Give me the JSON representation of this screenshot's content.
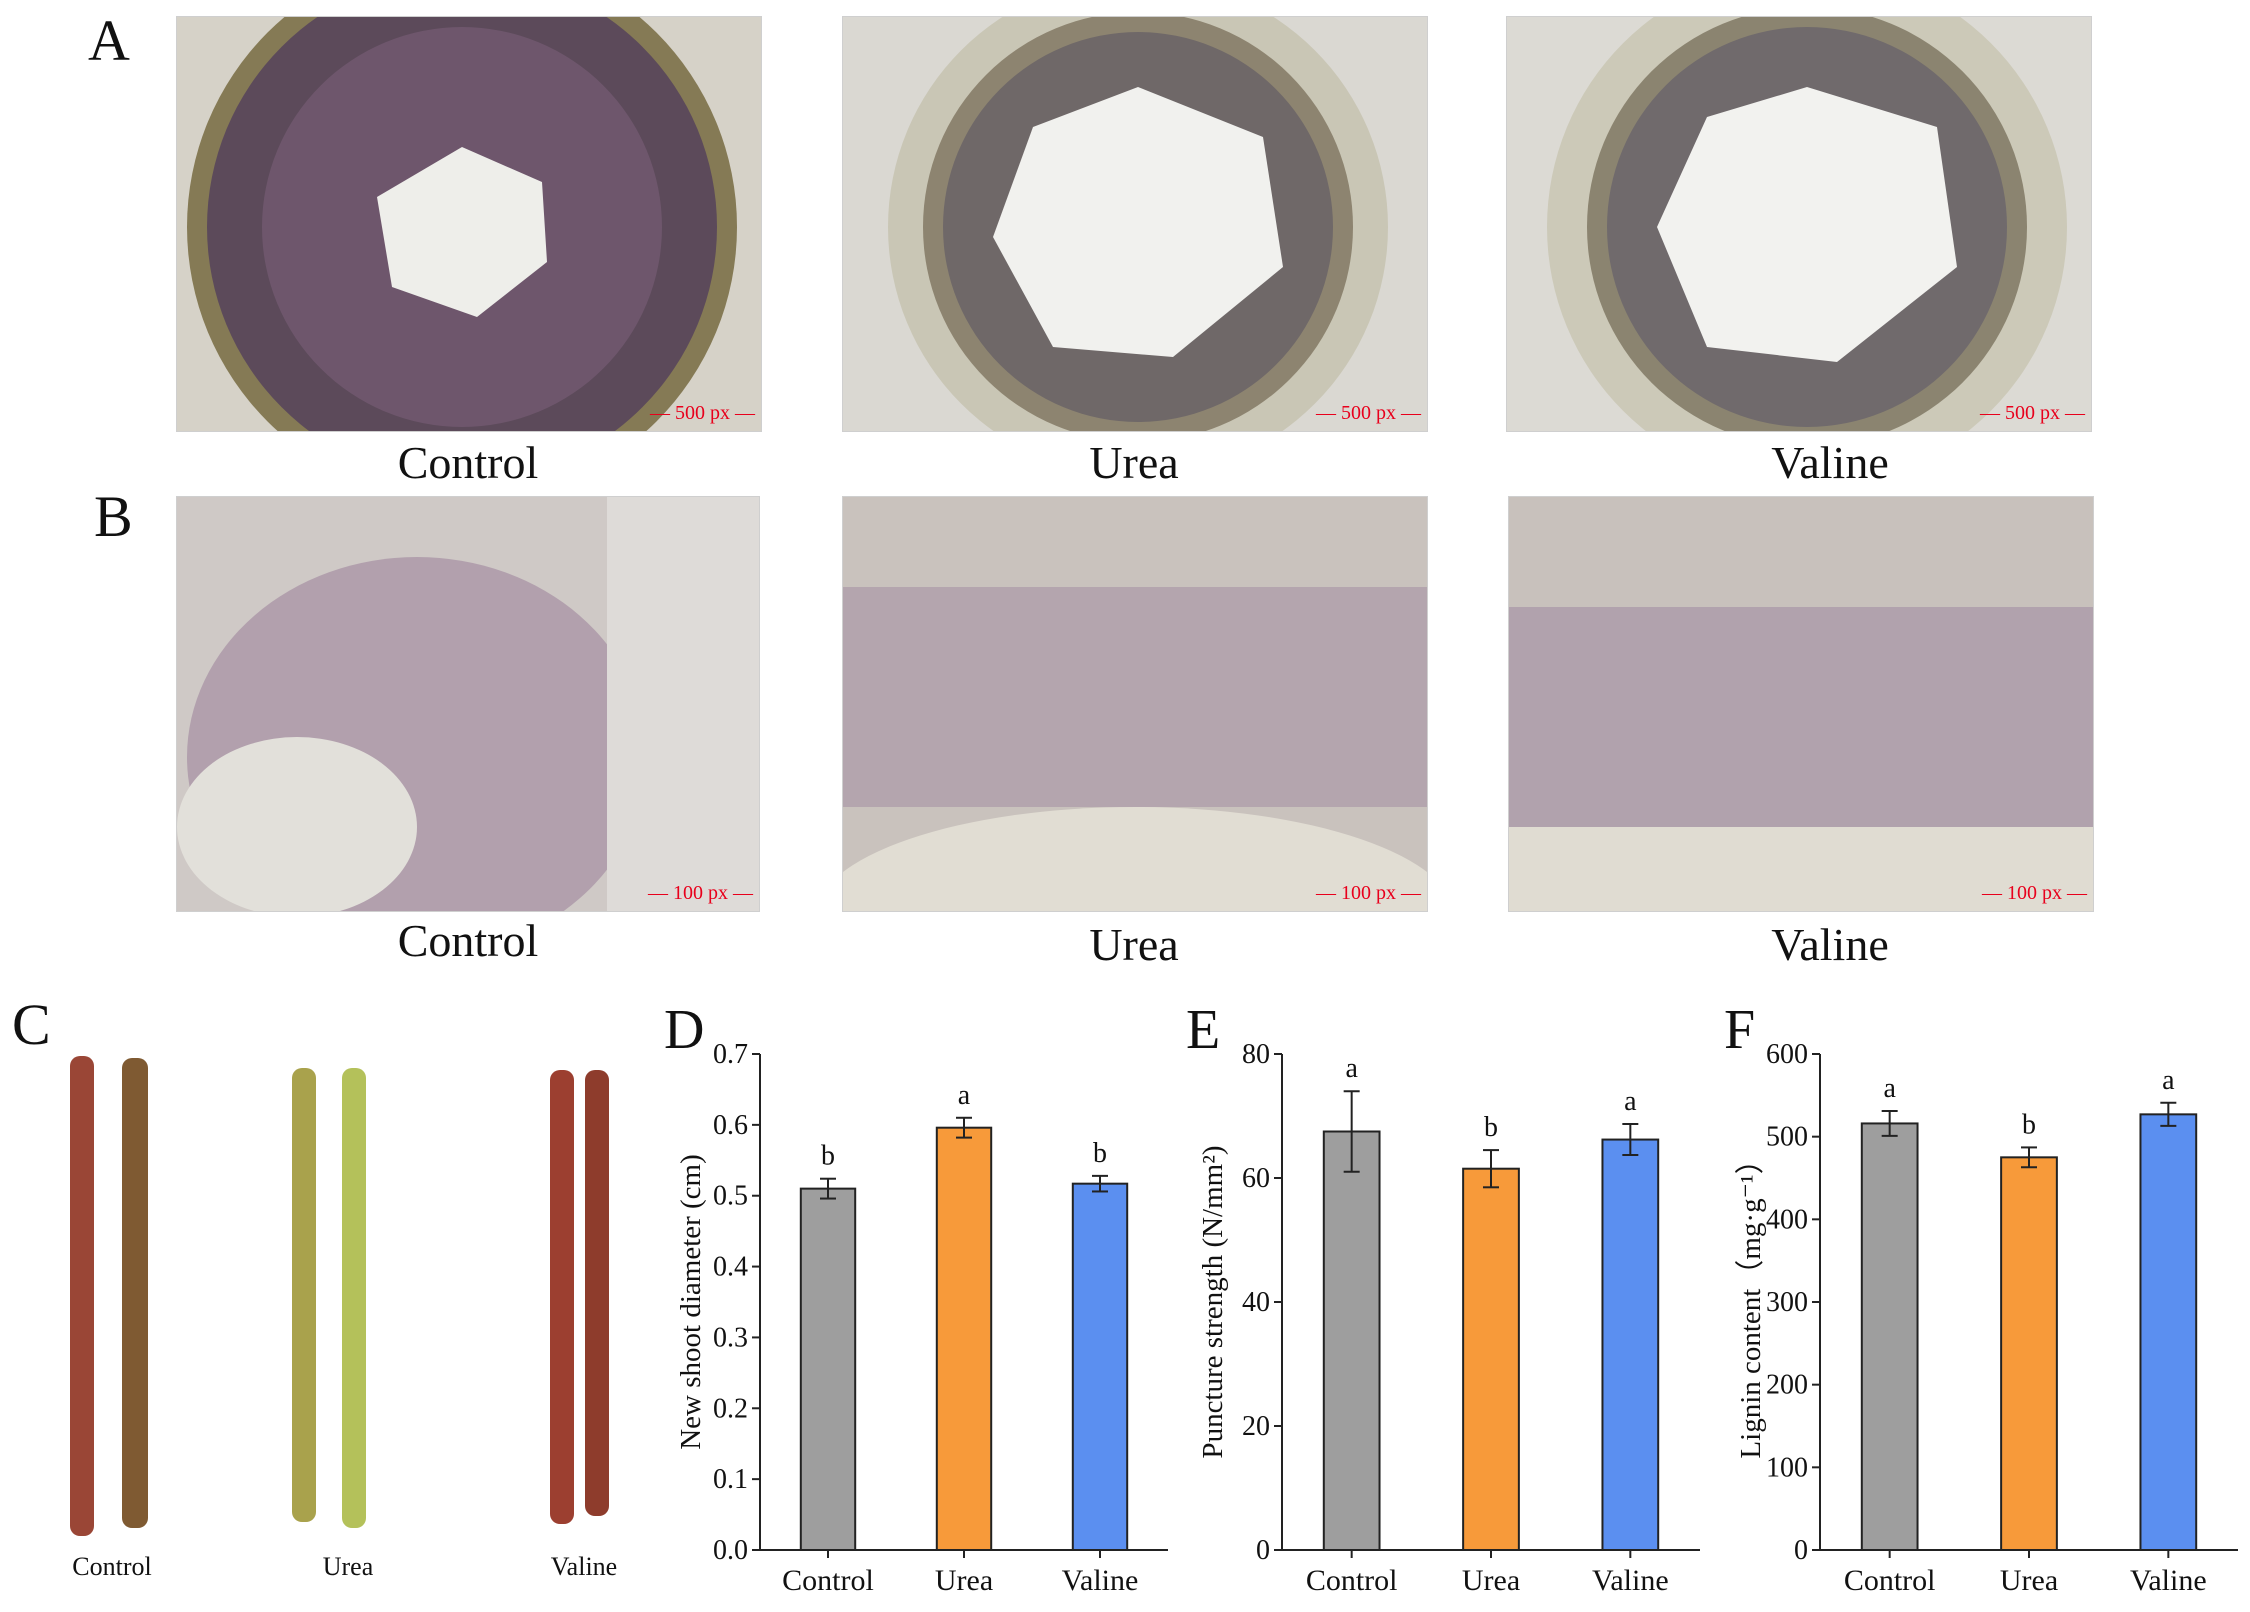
{
  "panels": {
    "A": {
      "letter": "A",
      "images": [
        {
          "caption": "Control",
          "scale_bar": "500 px"
        },
        {
          "caption": "Urea",
          "scale_bar": "500 px"
        },
        {
          "caption": "Valine",
          "scale_bar": "500 px"
        }
      ]
    },
    "B": {
      "letter": "B",
      "images": [
        {
          "caption": "Control",
          "scale_bar": "100 px"
        },
        {
          "caption": "Urea",
          "scale_bar": "100 px"
        },
        {
          "caption": "Valine",
          "scale_bar": "100 px"
        }
      ]
    },
    "C": {
      "letter": "C",
      "shoots": [
        {
          "label": "Control",
          "colors": [
            "#9a4636",
            "#7f5a32"
          ]
        },
        {
          "label": "Urea",
          "colors": [
            "#a9a24c",
            "#b4c15a"
          ]
        },
        {
          "label": "Valine",
          "colors": [
            "#9c3f30",
            "#8e3c2c"
          ]
        }
      ]
    }
  },
  "colors": {
    "control": "#9e9e9e",
    "urea": "#f79a3a",
    "valine": "#5b8ff0"
  },
  "chart_data": [
    {
      "panel": "D",
      "type": "bar",
      "ylabel": "New shoot diameter (cm)",
      "categories": [
        "Control",
        "Urea",
        "Valine"
      ],
      "values": [
        0.51,
        0.596,
        0.517
      ],
      "errors": [
        0.014,
        0.014,
        0.011
      ],
      "sig_letters": [
        "b",
        "a",
        "b"
      ],
      "ylim": [
        0,
        0.7
      ],
      "yticks": [
        "0.0",
        "0.1",
        "0.2",
        "0.3",
        "0.4",
        "0.5",
        "0.6",
        "0.7"
      ]
    },
    {
      "panel": "E",
      "type": "bar",
      "ylabel": "Puncture strength (N/mm²)",
      "categories": [
        "Control",
        "Urea",
        "Valine"
      ],
      "values": [
        67.5,
        61.5,
        66.2
      ],
      "errors": [
        6.5,
        3.0,
        2.5
      ],
      "sig_letters": [
        "a",
        "b",
        "a"
      ],
      "ylim": [
        0,
        80
      ],
      "yticks": [
        "0",
        "20",
        "40",
        "60",
        "80"
      ]
    },
    {
      "panel": "F",
      "type": "bar",
      "ylabel": "Lignin content（mg·g⁻¹）",
      "categories": [
        "Control",
        "Urea",
        "Valine"
      ],
      "values": [
        516,
        475,
        527
      ],
      "errors": [
        15,
        12,
        14
      ],
      "sig_letters": [
        "a",
        "b",
        "a"
      ],
      "ylim": [
        0,
        600
      ],
      "yticks": [
        "0",
        "100",
        "200",
        "300",
        "400",
        "500",
        "600"
      ]
    }
  ]
}
